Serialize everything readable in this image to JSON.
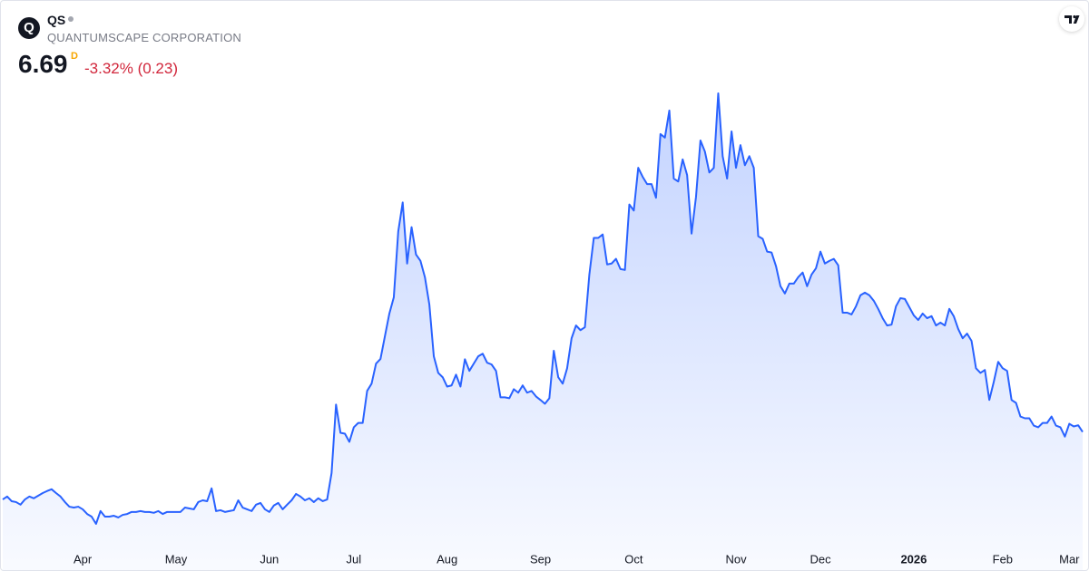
{
  "header": {
    "logo": "Q",
    "symbol": "QS",
    "name": "QUANTUMSCAPE CORPORATION",
    "price": 6.69,
    "interval": "D",
    "change": "-3.32% (0.23)"
  },
  "chart_data": {
    "type": "area",
    "categories": [
      null,
      null,
      null,
      null,
      null,
      null,
      null,
      null,
      null,
      null,
      null,
      null,
      null,
      null,
      null,
      null,
      null,
      null,
      "Apr",
      null,
      null,
      null,
      null,
      null,
      null,
      null,
      null,
      null,
      null,
      null,
      null,
      null,
      null,
      null,
      null,
      null,
      null,
      null,
      null,
      "May",
      null,
      null,
      null,
      null,
      null,
      null,
      null,
      null,
      null,
      null,
      null,
      null,
      null,
      null,
      null,
      null,
      null,
      null,
      null,
      null,
      "Jun",
      null,
      null,
      null,
      null,
      null,
      null,
      null,
      null,
      null,
      null,
      null,
      null,
      null,
      null,
      null,
      null,
      null,
      null,
      "Jul",
      null,
      null,
      null,
      null,
      null,
      null,
      null,
      null,
      null,
      null,
      null,
      null,
      null,
      null,
      null,
      null,
      null,
      null,
      null,
      null,
      "Aug",
      null,
      null,
      null,
      null,
      null,
      null,
      null,
      null,
      null,
      null,
      null,
      null,
      null,
      null,
      null,
      null,
      null,
      null,
      null,
      null,
      "Sep",
      null,
      null,
      null,
      null,
      null,
      null,
      null,
      null,
      null,
      null,
      null,
      null,
      null,
      null,
      null,
      null,
      null,
      null,
      null,
      null,
      "Oct",
      null,
      null,
      null,
      null,
      null,
      null,
      null,
      null,
      null,
      null,
      null,
      null,
      null,
      null,
      null,
      null,
      null,
      null,
      null,
      null,
      null,
      null,
      "Nov",
      null,
      null,
      null,
      null,
      null,
      null,
      null,
      null,
      null,
      null,
      null,
      null,
      null,
      null,
      null,
      null,
      null,
      null,
      "Dec",
      null,
      null,
      null,
      null,
      null,
      null,
      null,
      null,
      null,
      null,
      null,
      null,
      null,
      null,
      null,
      null,
      null,
      null,
      null,
      null,
      "2026",
      null,
      null,
      null,
      null,
      null,
      null,
      null,
      null,
      null,
      null,
      null,
      null,
      null,
      null,
      null,
      null,
      null,
      null,
      null,
      "Feb",
      null,
      null,
      null,
      null,
      null,
      null,
      null,
      null,
      null,
      null,
      null,
      null,
      null,
      null,
      "Mar",
      null,
      null,
      null
    ],
    "series": [
      {
        "color": "#2962ff",
        "values": [
          4.37,
          4.47,
          4.31,
          4.28,
          4.19,
          4.37,
          4.47,
          4.41,
          4.5,
          4.59,
          4.66,
          4.72,
          4.59,
          4.47,
          4.28,
          4.12,
          4.09,
          4.12,
          4.03,
          3.87,
          3.78,
          3.53,
          3.97,
          3.78,
          3.78,
          3.81,
          3.75,
          3.84,
          3.87,
          3.94,
          3.94,
          3.97,
          3.94,
          3.94,
          3.91,
          3.97,
          3.87,
          3.94,
          3.94,
          3.94,
          3.94,
          4.09,
          4.06,
          4.03,
          4.28,
          4.34,
          4.31,
          4.75,
          3.97,
          4.0,
          3.94,
          3.97,
          4.0,
          4.34,
          4.09,
          4.03,
          3.97,
          4.19,
          4.25,
          4.03,
          3.94,
          4.16,
          4.25,
          4.03,
          4.19,
          4.34,
          4.56,
          4.47,
          4.34,
          4.41,
          4.28,
          4.41,
          4.31,
          4.37,
          5.28,
          7.63,
          6.66,
          6.63,
          6.35,
          6.85,
          7.0,
          7.0,
          8.1,
          8.35,
          9.04,
          9.2,
          9.98,
          10.76,
          11.32,
          13.58,
          14.58,
          12.48,
          13.73,
          12.79,
          12.57,
          12.01,
          11.07,
          9.29,
          8.72,
          8.57,
          8.25,
          8.29,
          8.66,
          8.25,
          9.19,
          8.79,
          9.04,
          9.29,
          9.38,
          9.07,
          9.01,
          8.79,
          7.88,
          7.88,
          7.85,
          8.16,
          8.04,
          8.29,
          8.04,
          8.1,
          7.91,
          7.79,
          7.66,
          7.85,
          9.48,
          8.57,
          8.35,
          8.88,
          9.91,
          10.35,
          10.19,
          10.29,
          12.1,
          13.36,
          13.36,
          13.48,
          12.45,
          12.48,
          12.64,
          12.29,
          12.26,
          14.51,
          14.3,
          15.77,
          15.46,
          15.21,
          15.21,
          14.74,
          16.93,
          16.81,
          17.74,
          15.4,
          15.3,
          16.06,
          15.52,
          13.51,
          14.77,
          16.71,
          16.33,
          15.61,
          15.77,
          18.33,
          16.17,
          15.4,
          17.02,
          15.77,
          16.55,
          15.86,
          16.17,
          15.77,
          13.42,
          13.33,
          12.89,
          12.86,
          12.39,
          11.7,
          11.45,
          11.79,
          11.79,
          12.01,
          12.17,
          11.7,
          12.1,
          12.32,
          12.89,
          12.48,
          12.57,
          12.64,
          12.42,
          10.79,
          10.79,
          10.73,
          11.01,
          11.39,
          11.48,
          11.39,
          11.2,
          10.92,
          10.6,
          10.35,
          10.38,
          11.01,
          11.29,
          11.26,
          10.98,
          10.7,
          10.54,
          10.76,
          10.6,
          10.67,
          10.35,
          10.45,
          10.35,
          10.92,
          10.67,
          10.23,
          9.91,
          10.07,
          9.82,
          8.88,
          8.72,
          8.82,
          7.79,
          8.41,
          9.1,
          8.88,
          8.79,
          7.79,
          7.69,
          7.22,
          7.16,
          7.16,
          6.91,
          6.85,
          7.0,
          7.0,
          7.22,
          6.91,
          6.85,
          6.53,
          6.97,
          6.88,
          6.92,
          6.69
        ]
      }
    ]
  }
}
